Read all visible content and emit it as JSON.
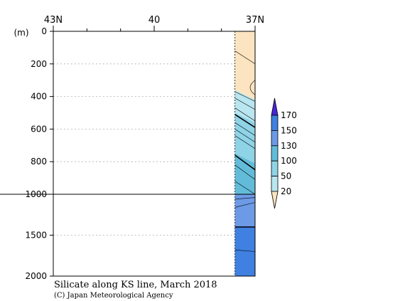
{
  "chart_data": {
    "type": "contour section",
    "title": "Silicate along KS line, March 2018",
    "credit": "(C) Japan Meteorological Agency",
    "x_axis": {
      "range": [
        43,
        37
      ],
      "tick_labels": [
        {
          "value": 43,
          "label": "43N"
        },
        {
          "value": 40,
          "label": "40"
        },
        {
          "value": 37,
          "label": "37N"
        }
      ],
      "minor_ticks": [
        42,
        41,
        39,
        38
      ]
    },
    "y_axis": {
      "unit_label": "(m)",
      "upper_range": [
        0,
        1000
      ],
      "lower_range": [
        1000,
        2000
      ],
      "upper_ticks": [
        0,
        200,
        400,
        600,
        800,
        1000
      ],
      "lower_ticks": [
        1500,
        2000
      ]
    },
    "data_extent": {
      "lat_north": 37.6,
      "lat_south": 37.0
    },
    "colorbar": {
      "levels": [
        20,
        50,
        100,
        130,
        150,
        170
      ],
      "colors": [
        "#fde4c0",
        "#b9e6f0",
        "#8fd3e6",
        "#62bcd9",
        "#6c9ae6",
        "#3f80e0",
        "#1565ef",
        "#4a24d8"
      ]
    },
    "layers": [
      {
        "lower_than": 20,
        "top_depth": 0,
        "bottom_depth": 360
      },
      {
        "from": 20,
        "to": 50,
        "top_depth": 360,
        "bottom_depth": 500
      },
      {
        "from": 50,
        "to": 100,
        "top_depth": 500,
        "bottom_depth": 750
      },
      {
        "from": 100,
        "to": 130,
        "top_depth": 750,
        "bottom_depth": 1000
      },
      {
        "from": 130,
        "to": 150,
        "top_depth": 1000,
        "bottom_depth": 1400
      },
      {
        "from": 150,
        "to": 170,
        "top_depth": 1400,
        "bottom_depth": 2000
      }
    ],
    "contours": [
      {
        "depth_north": 120,
        "depth_south": 200
      },
      {
        "depth_north": 370,
        "depth_south": 430
      },
      {
        "depth_north": 410,
        "depth_south": 480
      },
      {
        "depth_north": 470,
        "depth_south": 550
      },
      {
        "depth_north": 510,
        "depth_south": 590,
        "bold": true
      },
      {
        "depth_north": 560,
        "depth_south": 640
      },
      {
        "depth_north": 600,
        "depth_south": 680
      },
      {
        "depth_north": 640,
        "depth_south": 720
      },
      {
        "depth_north": 760,
        "depth_south": 850,
        "bold": true
      },
      {
        "depth_north": 820,
        "depth_south": 910
      },
      {
        "depth_north": 920,
        "depth_south": 1000
      },
      {
        "depth_north": 1060,
        "depth_south": 1040
      },
      {
        "depth_north": 1160,
        "depth_south": 1100
      },
      {
        "depth_north": 1400,
        "depth_south": 1400,
        "bold": true
      },
      {
        "depth_north": 1680,
        "depth_south": 1700
      }
    ]
  }
}
